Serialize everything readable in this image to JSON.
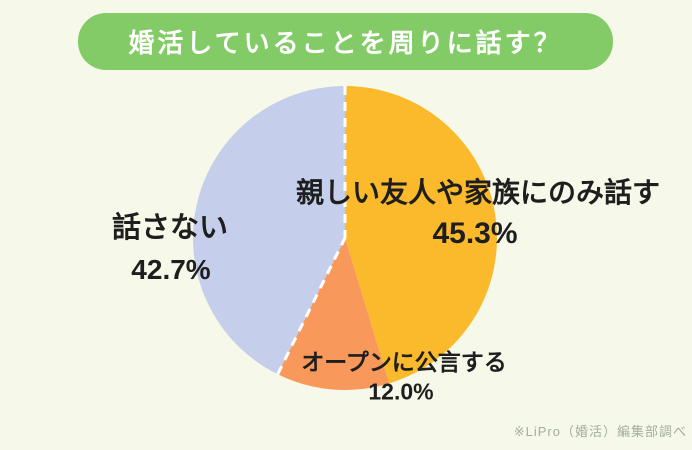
{
  "page": {
    "background_color": "#f6f9e9",
    "text_color": "#1e1e1e"
  },
  "header": {
    "title": "婚活していることを周りに話す？",
    "background_color": "#82cb66",
    "text_color": "#ffffff"
  },
  "footnote": {
    "text": "※LiPro（婚活）編集部調べ",
    "color": "#a3ad9e"
  },
  "chart_data": {
    "type": "pie",
    "title": "婚活していることを周りに話す？",
    "start_angle_deg": 0,
    "direction": "clockwise",
    "legend_position": "on-chart",
    "source_note": "※LiPro（婚活）編集部調べ",
    "segments": [
      {
        "label": "親しい友人や家族にのみ話す",
        "value": 45.3,
        "pct_label": "45.3%",
        "color": "#fbba2c",
        "dashed_start": true
      },
      {
        "label": "オープンに公言する",
        "value": 12.0,
        "pct_label": "12.0%",
        "color": "#f8985a",
        "dashed_start": false
      },
      {
        "label": "話さない",
        "value": 42.7,
        "pct_label": "42.7%",
        "color": "#c5cfeb",
        "dashed_start": true
      }
    ],
    "separator_style": {
      "color": "#ffffff",
      "width": 3,
      "dash": [
        9,
        7
      ]
    }
  }
}
